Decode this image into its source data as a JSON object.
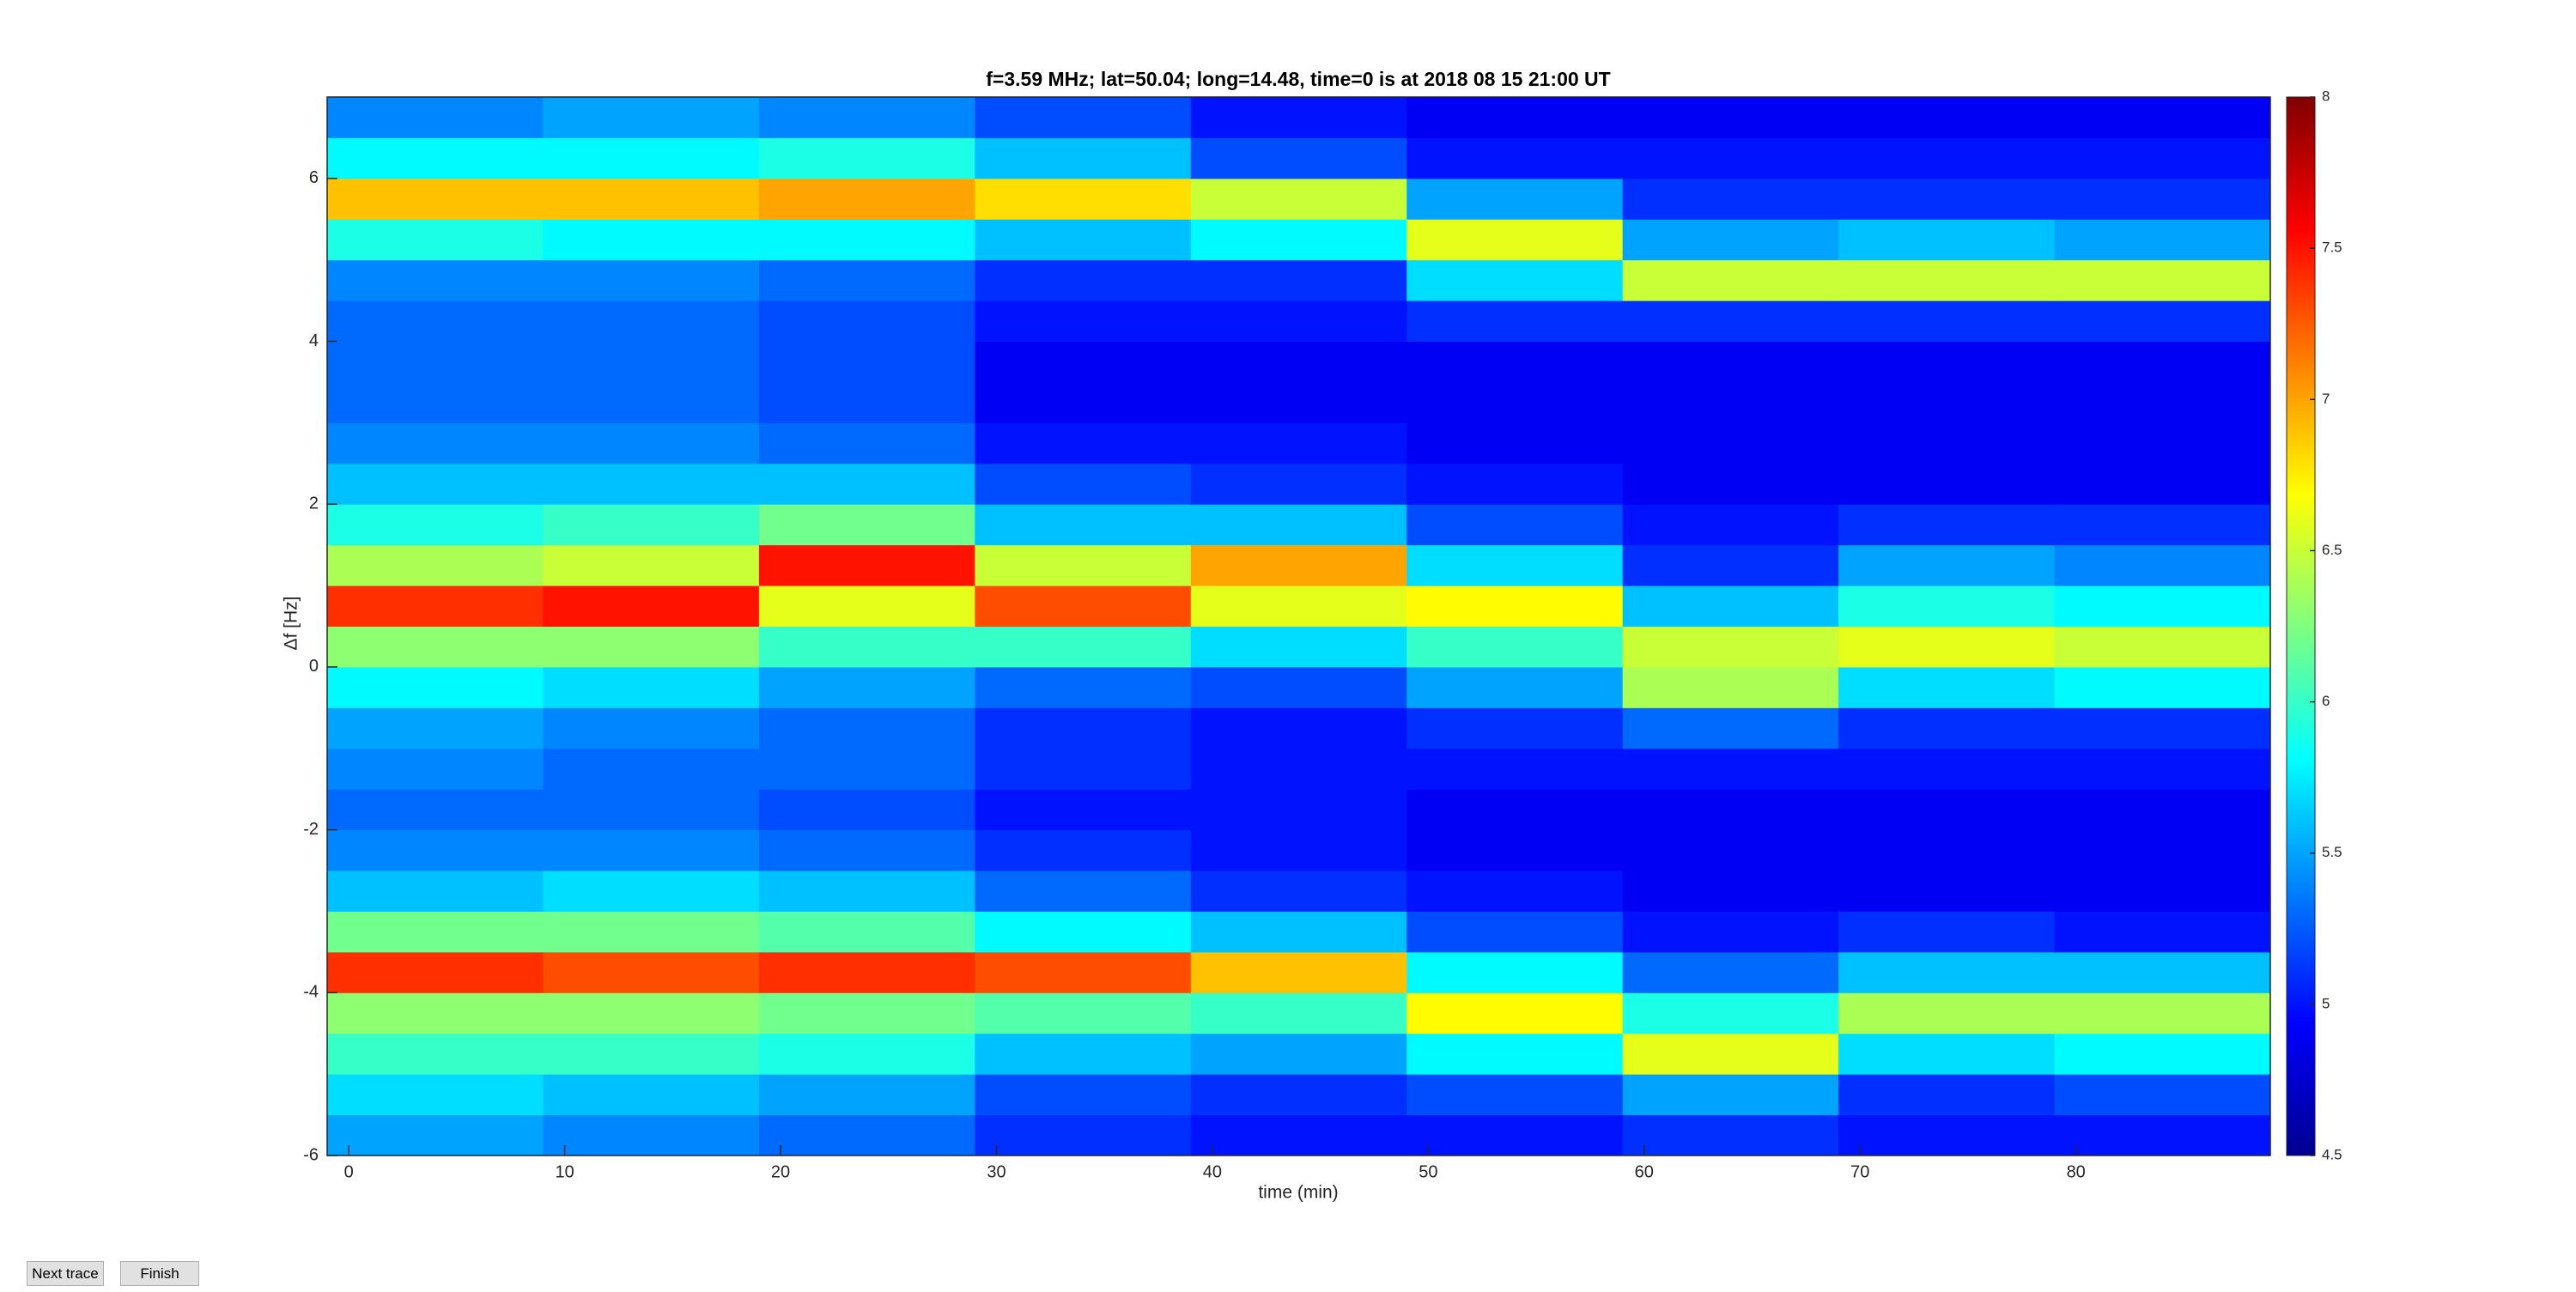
{
  "chart_data": {
    "type": "heatmap",
    "title": "f=3.59 MHz;  lat=50.04; long=14.48, time=0 is at 2018 08 15 21:00 UT",
    "xlabel": "time (min)",
    "ylabel": "Δf [Hz]",
    "xbins": [
      -1,
      9,
      19,
      29,
      39,
      49,
      59,
      69,
      79,
      89
    ],
    "ybins": [
      -6,
      -5.5,
      -5,
      -4.5,
      -4,
      -3.5,
      -3,
      -2.5,
      -2,
      -1.5,
      -1,
      -0.5,
      0,
      0.5,
      1,
      1.5,
      2,
      2.5,
      3,
      3.5,
      4,
      4.5,
      5,
      5.5,
      6,
      6.5,
      7
    ],
    "z": [
      [
        5.5,
        5.4,
        5.3,
        5.1,
        5.0,
        5.0,
        5.1,
        5.0,
        5.0
      ],
      [
        5.7,
        5.6,
        5.5,
        5.2,
        5.1,
        5.2,
        5.5,
        5.1,
        5.2
      ],
      [
        6.0,
        6.0,
        5.9,
        5.6,
        5.5,
        5.8,
        6.6,
        5.7,
        5.8
      ],
      [
        6.3,
        6.3,
        6.2,
        6.1,
        6.0,
        6.7,
        5.9,
        6.4,
        6.4
      ],
      [
        7.4,
        7.3,
        7.4,
        7.3,
        6.9,
        5.8,
        5.3,
        5.6,
        5.6
      ],
      [
        6.2,
        6.2,
        6.1,
        5.8,
        5.6,
        5.2,
        5.0,
        5.1,
        5.0
      ],
      [
        5.6,
        5.7,
        5.6,
        5.3,
        5.1,
        5.0,
        4.9,
        4.9,
        4.9
      ],
      [
        5.4,
        5.4,
        5.3,
        5.1,
        5.0,
        4.9,
        4.9,
        4.9,
        4.9
      ],
      [
        5.3,
        5.3,
        5.2,
        5.0,
        5.0,
        4.9,
        4.9,
        4.9,
        4.9
      ],
      [
        5.4,
        5.3,
        5.3,
        5.1,
        5.0,
        5.0,
        5.0,
        5.0,
        5.0
      ],
      [
        5.5,
        5.4,
        5.3,
        5.1,
        5.0,
        5.1,
        5.3,
        5.1,
        5.1
      ],
      [
        5.8,
        5.7,
        5.5,
        5.3,
        5.2,
        5.5,
        6.4,
        5.7,
        5.8
      ],
      [
        6.3,
        6.3,
        6.0,
        6.0,
        5.7,
        6.0,
        6.5,
        6.6,
        6.5
      ],
      [
        7.4,
        7.5,
        6.6,
        7.3,
        6.6,
        6.7,
        5.6,
        5.9,
        5.8
      ],
      [
        6.4,
        6.5,
        7.5,
        6.5,
        7.0,
        5.7,
        5.1,
        5.5,
        5.4
      ],
      [
        5.9,
        6.0,
        6.2,
        5.6,
        5.6,
        5.2,
        5.0,
        5.1,
        5.1
      ],
      [
        5.6,
        5.6,
        5.6,
        5.2,
        5.1,
        5.0,
        4.9,
        4.9,
        4.9
      ],
      [
        5.4,
        5.4,
        5.3,
        5.0,
        5.0,
        4.9,
        4.9,
        4.9,
        4.9
      ],
      [
        5.3,
        5.3,
        5.2,
        4.9,
        4.9,
        4.9,
        4.9,
        4.9,
        4.9
      ],
      [
        5.3,
        5.3,
        5.2,
        4.9,
        4.9,
        4.9,
        4.9,
        4.9,
        4.9
      ],
      [
        5.3,
        5.3,
        5.2,
        5.0,
        5.0,
        5.1,
        5.1,
        5.1,
        5.1
      ],
      [
        5.4,
        5.4,
        5.3,
        5.1,
        5.1,
        5.7,
        6.5,
        6.5,
        6.5
      ],
      [
        5.9,
        5.8,
        5.8,
        5.6,
        5.8,
        6.6,
        5.5,
        5.6,
        5.5
      ],
      [
        6.9,
        6.9,
        7.0,
        6.8,
        6.5,
        5.5,
        5.1,
        5.1,
        5.1
      ],
      [
        5.8,
        5.8,
        5.9,
        5.6,
        5.2,
        5.0,
        5.0,
        5.0,
        5.0
      ],
      [
        5.4,
        5.5,
        5.4,
        5.2,
        5.0,
        4.9,
        4.9,
        4.9,
        4.9
      ]
    ],
    "xlim": [
      -1,
      89
    ],
    "ylim": [
      -6,
      7
    ],
    "xticks": [
      0,
      10,
      20,
      30,
      40,
      50,
      60,
      70,
      80
    ],
    "yticks": [
      -6,
      -4,
      -2,
      0,
      2,
      4,
      6
    ],
    "clim": [
      4.5,
      8
    ],
    "cticks": [
      4.5,
      5,
      5.5,
      6,
      6.5,
      7,
      7.5,
      8
    ],
    "colormap": "jet"
  },
  "buttons": [
    "Next trace",
    "Finish"
  ]
}
